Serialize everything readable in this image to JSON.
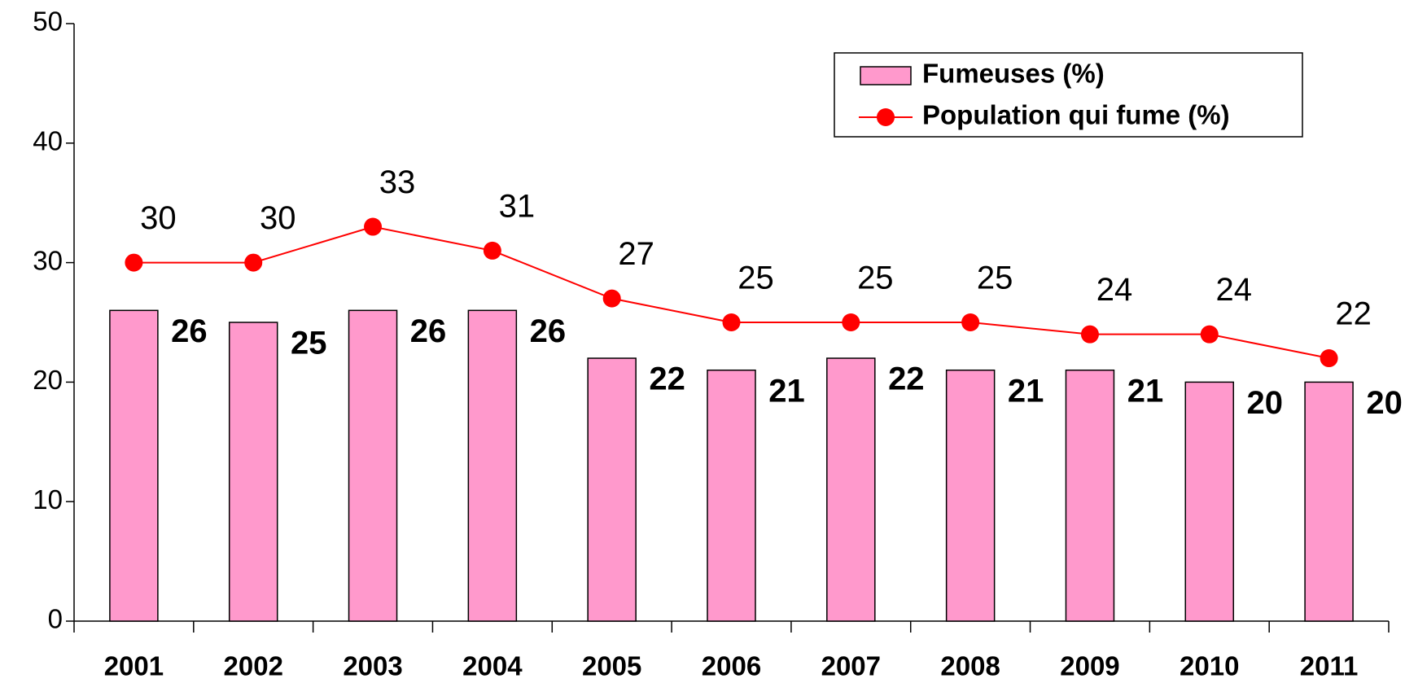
{
  "chart_data": {
    "type": "bar_line",
    "categories": [
      "2001",
      "2002",
      "2003",
      "2004",
      "2005",
      "2006",
      "2007",
      "2008",
      "2009",
      "2010",
      "2011"
    ],
    "series": [
      {
        "name": "Fumeuses (%)",
        "type": "bar",
        "color": "#ff99cc",
        "values": [
          26,
          25,
          26,
          26,
          22,
          21,
          22,
          21,
          21,
          20,
          20
        ]
      },
      {
        "name": "Population qui fume (%)",
        "type": "line",
        "color": "#ff0000",
        "values": [
          30,
          30,
          33,
          31,
          27,
          25,
          25,
          25,
          24,
          24,
          22
        ]
      }
    ],
    "ylim": [
      0,
      50
    ],
    "yticks": [
      0,
      10,
      20,
      30,
      40,
      50
    ],
    "grid": false,
    "legend": "top-right"
  }
}
